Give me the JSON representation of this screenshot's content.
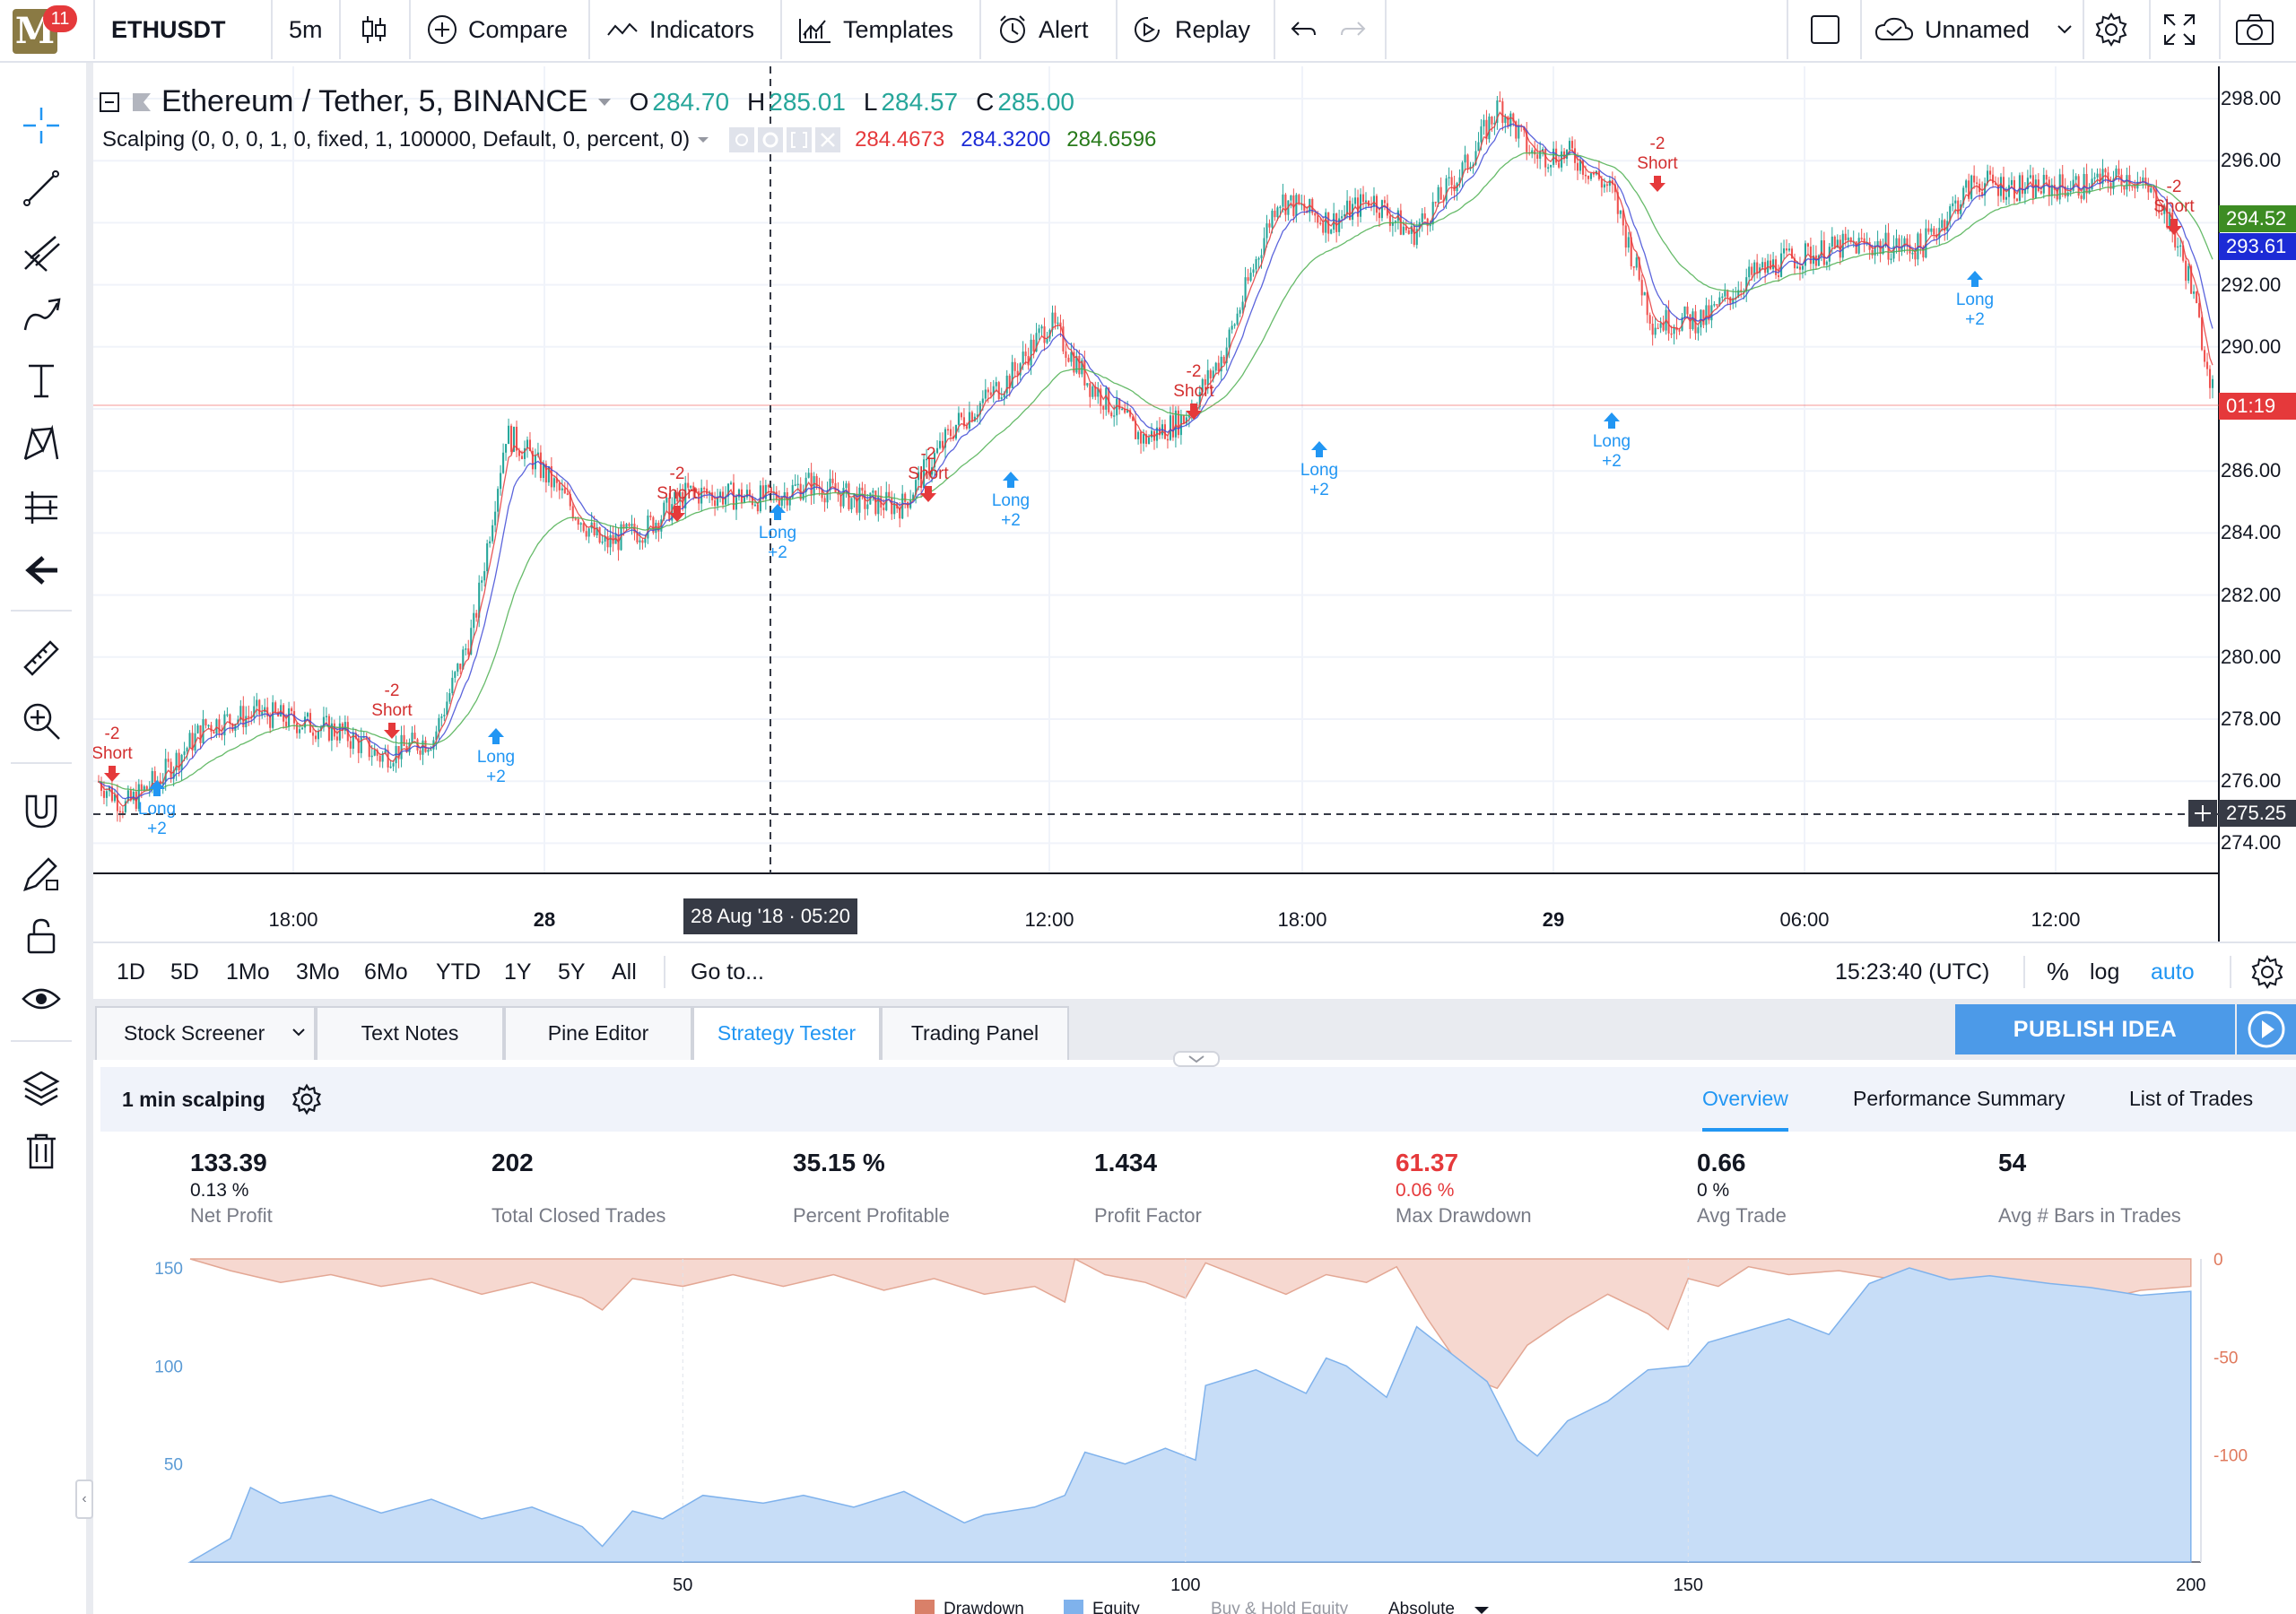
{
  "toolbar": {
    "badge": "11",
    "logo_letter": "M",
    "symbol": "ETHUSDT",
    "interval": "5m",
    "compare": "Compare",
    "indicators": "Indicators",
    "templates": "Templates",
    "alert": "Alert",
    "replay": "Replay",
    "layout_name": "Unnamed"
  },
  "legend": {
    "title": "Ethereum / Tether, 5, BINANCE",
    "o_label": "O",
    "o": "284.70",
    "h_label": "H",
    "h": "285.01",
    "l_label": "L",
    "l": "284.57",
    "c_label": "C",
    "c": "285.00",
    "study": "Scalping (0, 0, 0, 1, 0, fixed, 1, 100000, Default, 0, percent, 0)",
    "v1": "284.4673",
    "v2": "284.3200",
    "v3": "284.6596"
  },
  "price_scale": [
    "298.00",
    "296.00",
    "294.00",
    "292.00",
    "290.00",
    "288.00",
    "286.00",
    "284.00",
    "282.00",
    "280.00",
    "278.00",
    "276.00",
    "274.00"
  ],
  "price_badges": {
    "green": "294.52",
    "blue": "293.61",
    "red": "01:19",
    "cross": "275.25"
  },
  "time_scale": [
    "18:00",
    "28",
    "12:00",
    "18:00",
    "29",
    "06:00",
    "12:00"
  ],
  "crosshair_time": "28 Aug '18 · 05:20",
  "signals": {
    "short_top": "-2",
    "short_label": "Short",
    "long_label": "Long",
    "long_bottom": "+2"
  },
  "range_bar": {
    "ranges": [
      "1D",
      "5D",
      "1Mo",
      "3Mo",
      "6Mo",
      "YTD",
      "1Y",
      "5Y",
      "All"
    ],
    "goto": "Go to...",
    "clock": "15:23:40 (UTC)",
    "percent": "%",
    "log": "log",
    "auto": "auto"
  },
  "bottom_tabs": [
    "Stock Screener",
    "Text Notes",
    "Pine Editor",
    "Strategy Tester",
    "Trading Panel"
  ],
  "publish": "PUBLISH IDEA",
  "strategy": {
    "name": "1 min scalping",
    "tabs": [
      "Overview",
      "Performance Summary",
      "List of Trades"
    ]
  },
  "stats": [
    {
      "value": "133.39",
      "sub": "0.13 %",
      "label": "Net Profit"
    },
    {
      "value": "202",
      "sub": "",
      "label": "Total Closed Trades"
    },
    {
      "value": "35.15 %",
      "sub": "",
      "label": "Percent Profitable"
    },
    {
      "value": "1.434",
      "sub": "",
      "label": "Profit Factor"
    },
    {
      "value": "61.37",
      "sub": "0.06 %",
      "label": "Max Drawdown"
    },
    {
      "value": "0.66",
      "sub": "0 %",
      "label": "Avg Trade"
    },
    {
      "value": "54",
      "sub": "",
      "label": "Avg # Bars in Trades"
    }
  ],
  "equity_chart": {
    "left_ticks": [
      "150",
      "100",
      "50"
    ],
    "right_ticks": [
      "0",
      "-50",
      "-100"
    ],
    "x_ticks": [
      "50",
      "100",
      "150",
      "200"
    ],
    "legend": [
      "Drawdown",
      "Equity",
      "Buy & Hold Equity",
      "Absolute"
    ]
  },
  "colors": {
    "up": "#26a69a",
    "down": "#ef5350",
    "accent": "#2196f3",
    "drawdown": "#f6d8d0",
    "equity": "#c7ddf7"
  }
}
